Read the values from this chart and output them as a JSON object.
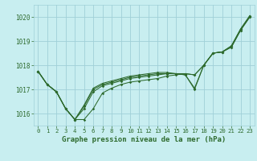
{
  "title": "Graphe pression niveau de la mer (hPa)",
  "bg_color": "#c8eef0",
  "grid_color": "#a0d0d8",
  "line_color": "#2d6a2d",
  "xlim": [
    -0.5,
    23.5
  ],
  "ylim": [
    1015.5,
    1020.5
  ],
  "yticks": [
    1016,
    1017,
    1018,
    1019,
    1020
  ],
  "xticks": [
    0,
    1,
    2,
    3,
    4,
    5,
    6,
    7,
    8,
    9,
    10,
    11,
    12,
    13,
    14,
    15,
    16,
    17,
    18,
    19,
    20,
    21,
    22,
    23
  ],
  "series": [
    [
      1017.75,
      1017.2,
      1016.9,
      1016.2,
      1015.75,
      1015.75,
      1016.2,
      1016.85,
      1017.05,
      1017.2,
      1017.3,
      1017.35,
      1017.4,
      1017.45,
      1017.55,
      1017.6,
      1017.65,
      1017.6,
      1018.0,
      1018.5,
      1018.55,
      1018.75,
      1019.45,
      1020.0
    ],
    [
      1017.75,
      1017.2,
      1016.9,
      1016.2,
      1015.75,
      1016.2,
      1016.9,
      1017.15,
      1017.25,
      1017.35,
      1017.45,
      1017.5,
      1017.55,
      1017.6,
      1017.65,
      1017.65,
      1017.65,
      1017.6,
      1018.0,
      1018.5,
      1018.55,
      1018.75,
      1019.45,
      1020.0
    ],
    [
      1017.75,
      1017.2,
      1016.9,
      1016.2,
      1015.75,
      1016.3,
      1017.0,
      1017.2,
      1017.3,
      1017.4,
      1017.5,
      1017.55,
      1017.6,
      1017.65,
      1017.65,
      1017.65,
      1017.6,
      1017.05,
      1018.0,
      1018.5,
      1018.55,
      1018.8,
      1019.5,
      1020.05
    ],
    [
      1017.75,
      1017.2,
      1016.9,
      1016.2,
      1015.75,
      1016.35,
      1017.05,
      1017.25,
      1017.35,
      1017.45,
      1017.55,
      1017.6,
      1017.65,
      1017.7,
      1017.7,
      1017.65,
      1017.6,
      1017.0,
      1018.0,
      1018.5,
      1018.55,
      1018.8,
      1019.5,
      1020.05
    ]
  ],
  "fig_width": 3.2,
  "fig_height": 2.0,
  "dpi": 100
}
